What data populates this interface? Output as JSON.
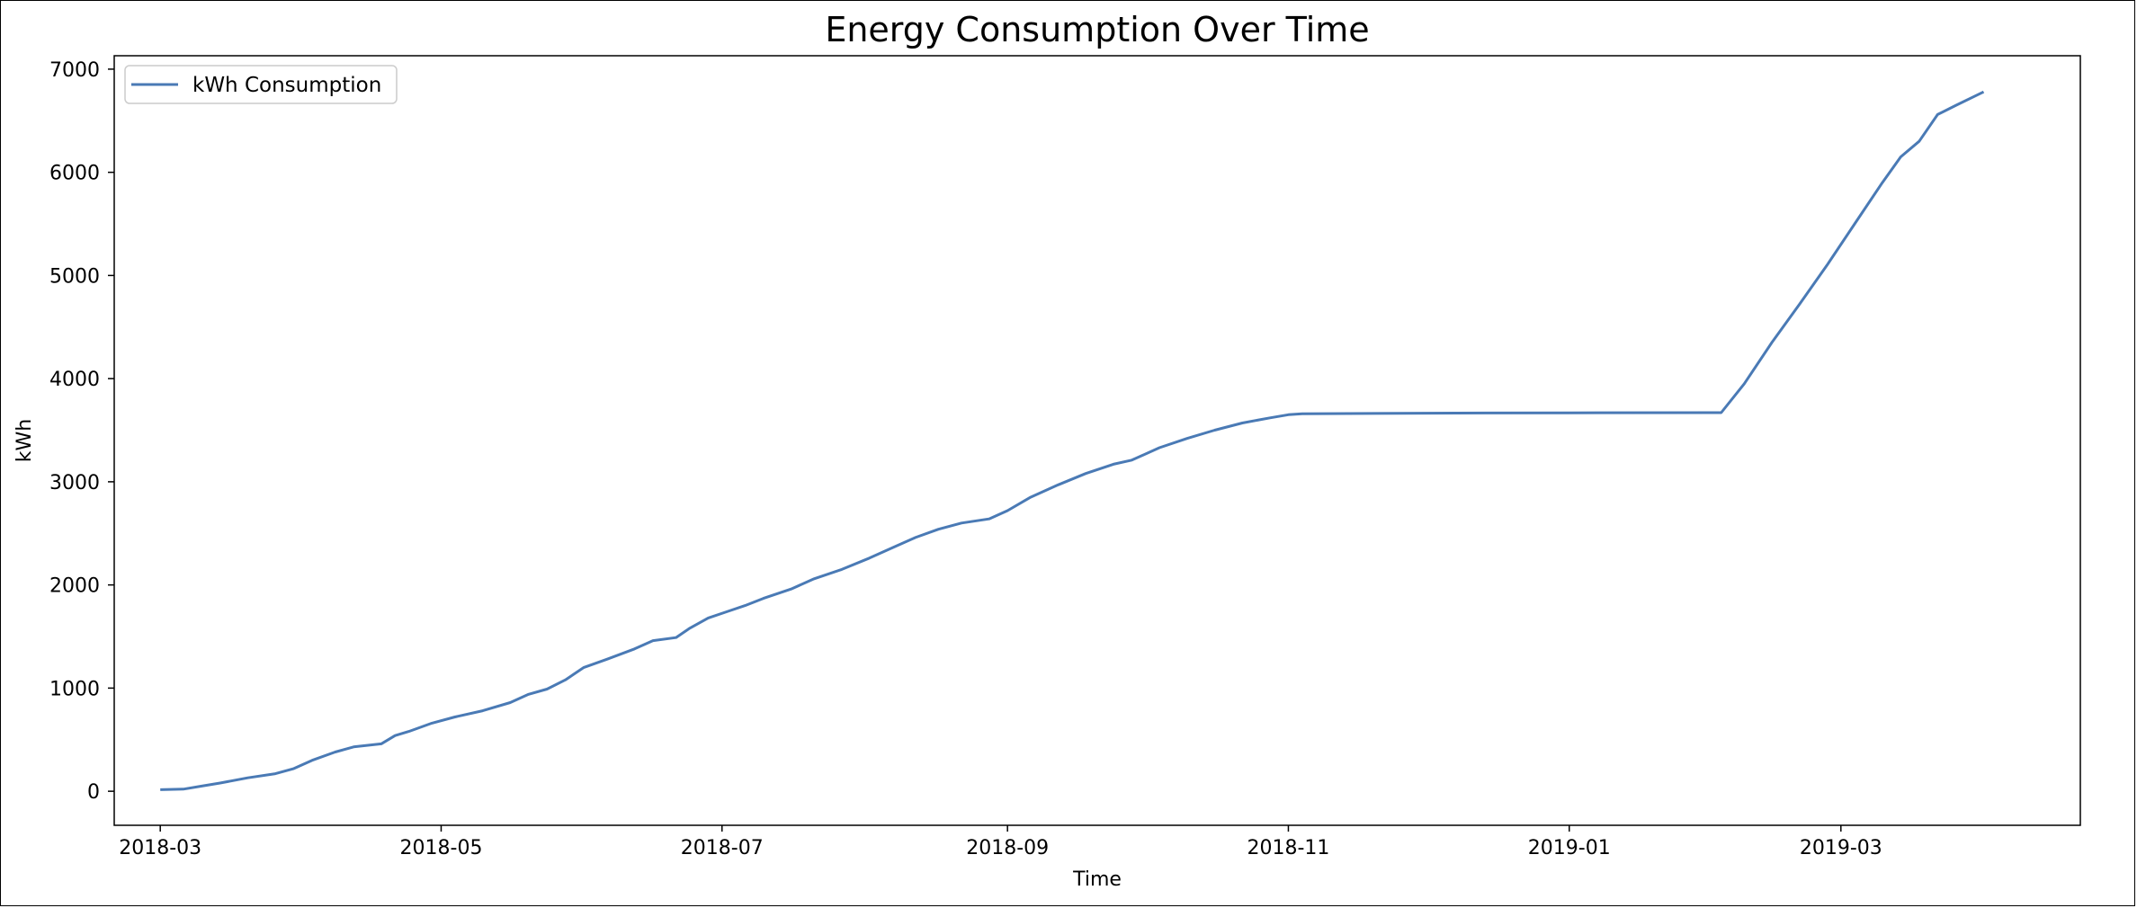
{
  "chart_data": {
    "type": "line",
    "title": "Energy Consumption Over Time",
    "xlabel": "Time",
    "ylabel": "kWh",
    "xlim": [
      "2018-02-19",
      "2019-04-22"
    ],
    "ylim": [
      -330,
      7130
    ],
    "grid": false,
    "legend_placement": "top-left",
    "x_ticks": [
      "2018-03",
      "2018-05",
      "2018-07",
      "2018-09",
      "2018-11",
      "2019-01",
      "2019-03"
    ],
    "x_tick_dates": [
      "2018-03-01",
      "2018-05-01",
      "2018-07-01",
      "2018-09-01",
      "2018-11-01",
      "2019-01-01",
      "2019-03-01"
    ],
    "y_ticks": [
      0,
      1000,
      2000,
      3000,
      4000,
      5000,
      6000,
      7000
    ],
    "series": [
      {
        "name": "kWh Consumption",
        "color": "#4a7ab5",
        "x": [
          "2018-03-01",
          "2018-03-06",
          "2018-03-10",
          "2018-03-14",
          "2018-03-20",
          "2018-03-26",
          "2018-03-30",
          "2018-04-03",
          "2018-04-08",
          "2018-04-12",
          "2018-04-18",
          "2018-04-21",
          "2018-04-24",
          "2018-04-29",
          "2018-05-04",
          "2018-05-10",
          "2018-05-16",
          "2018-05-20",
          "2018-05-24",
          "2018-05-28",
          "2018-06-01",
          "2018-06-06",
          "2018-06-12",
          "2018-06-16",
          "2018-06-21",
          "2018-06-24",
          "2018-06-28",
          "2018-07-02",
          "2018-07-06",
          "2018-07-10",
          "2018-07-16",
          "2018-07-21",
          "2018-07-27",
          "2018-08-02",
          "2018-08-08",
          "2018-08-12",
          "2018-08-17",
          "2018-08-22",
          "2018-08-28",
          "2018-09-01",
          "2018-09-06",
          "2018-09-12",
          "2018-09-18",
          "2018-09-24",
          "2018-09-28",
          "2018-10-04",
          "2018-10-10",
          "2018-10-16",
          "2018-10-22",
          "2018-10-28",
          "2018-11-01",
          "2018-11-04",
          "2018-12-01",
          "2019-01-01",
          "2019-02-03",
          "2019-02-08",
          "2019-02-14",
          "2019-02-20",
          "2019-02-26",
          "2019-03-04",
          "2019-03-10",
          "2019-03-14",
          "2019-03-18",
          "2019-03-22",
          "2019-03-26",
          "2019-04-01"
        ],
        "y": [
          15,
          20,
          50,
          80,
          130,
          170,
          220,
          300,
          380,
          430,
          460,
          540,
          580,
          660,
          720,
          780,
          860,
          940,
          990,
          1080,
          1200,
          1280,
          1380,
          1460,
          1490,
          1580,
          1680,
          1740,
          1800,
          1870,
          1960,
          2060,
          2150,
          2260,
          2380,
          2460,
          2540,
          2600,
          2640,
          2720,
          2850,
          2970,
          3080,
          3170,
          3210,
          3330,
          3420,
          3500,
          3570,
          3620,
          3650,
          3660,
          3665,
          3668,
          3670,
          3950,
          4350,
          4720,
          5100,
          5500,
          5900,
          6150,
          6300,
          6560,
          6650,
          6780
        ]
      }
    ]
  }
}
